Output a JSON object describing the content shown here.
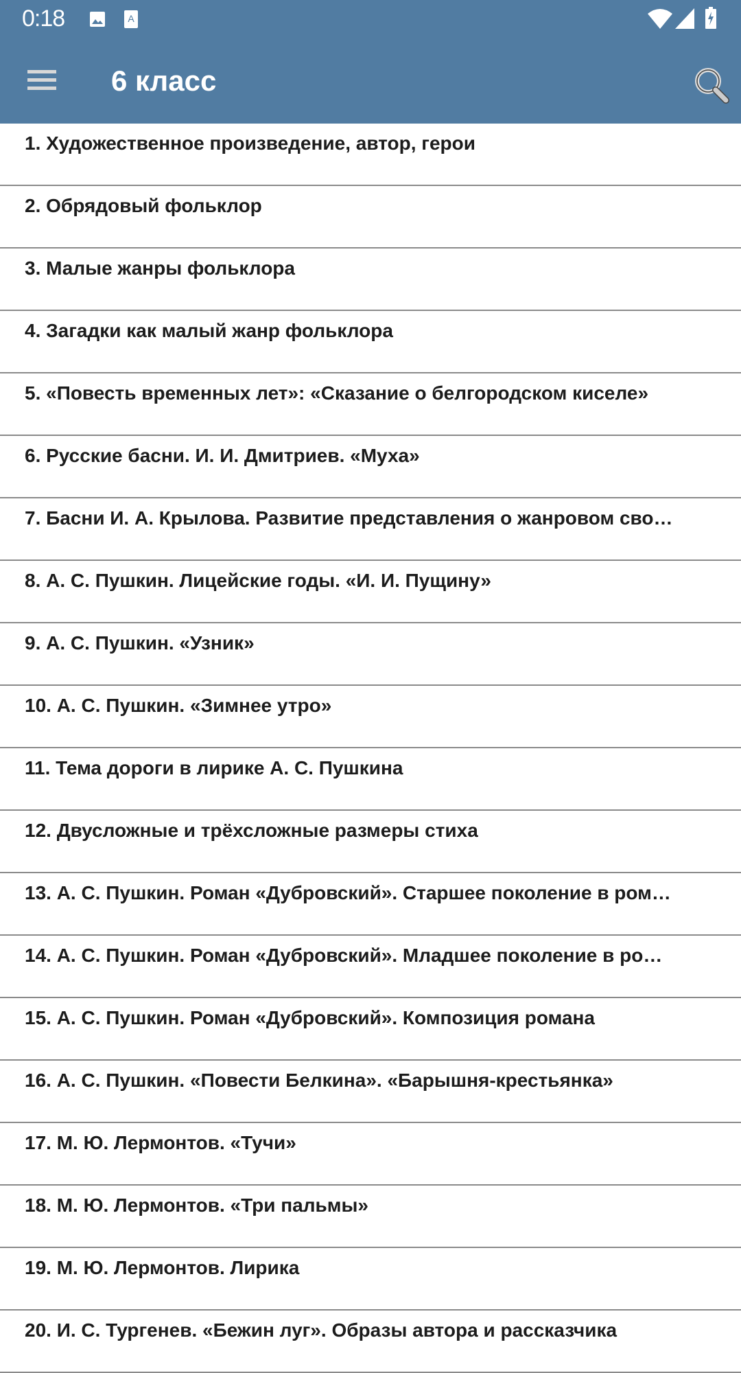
{
  "status_bar": {
    "time": "0:18",
    "icons": [
      "image-icon",
      "font-icon",
      "wifi-icon",
      "signal-icon",
      "battery-charging-icon"
    ]
  },
  "toolbar": {
    "title": "6 класс",
    "menu_icon": "hamburger-icon",
    "search_icon": "search-icon"
  },
  "colors": {
    "appbar": "#517ca2",
    "divider": "#8a8a8a",
    "text": "#1c1c1c"
  },
  "items": [
    "1. Художественное произведение, автор, герои",
    "2. Обрядовый фольклор",
    "3. Малые жанры фольклора",
    "4. Загадки как малый жанр фольклора",
    "5. «Повесть временных лет»: «Сказание о белгородском киселе»",
    "6. Русские басни. И. И. Дмитриев. «Муха»",
    "7. Басни И. А. Крылова. Развитие представления о жанровом сво…",
    "8. А. С. Пушкин. Лицейские годы. «И. И. Пущину»",
    "9. А. С. Пушкин. «Узник»",
    "10. А. С. Пушкин. «Зимнее утро»",
    "11. Тема дороги в лирике А. С. Пушкина",
    "12. Двусложные и трёхсложные размеры стиха",
    "13. А. С. Пушкин. Роман «Дубровский». Старшее поколение в ром…",
    "14. А. С. Пушкин. Роман «Дубровский». Младшее поколение в ро…",
    "15. А. С. Пушкин. Роман «Дубровский». Композиция романа",
    "16. А. С. Пушкин. «Повести Белкина». «Барышня-крестьянка»",
    "17. М. Ю. Лермонтов. «Тучи»",
    "18. М. Ю. Лермонтов. «Три пальмы»",
    "19. М. Ю. Лермонтов. Лирика",
    "20. И. С. Тургенев. «Бежин луг». Образы автора и рассказчика"
  ]
}
